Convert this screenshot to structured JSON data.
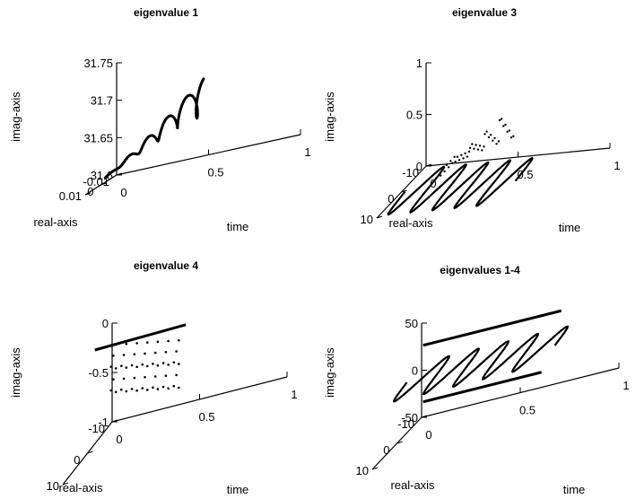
{
  "chart_data": [
    {
      "type": "line",
      "title": "eigenvalue 1",
      "xlabel": "time",
      "ylabel": "real-axis",
      "zlabel": "imag-axis",
      "xticks": [
        "0",
        "0.5",
        "1"
      ],
      "yticks": [
        "0.01",
        "0",
        "-0.01"
      ],
      "zticks": [
        "31.75",
        "31.7",
        "31.65",
        "31.6"
      ],
      "xlim": [
        0,
        1
      ],
      "ylim": [
        -0.01,
        0.01
      ],
      "zlim": [
        31.6,
        31.75
      ],
      "description_series": "helix around real=0, imag rising from 31.6 to 31.72 over time 0-1"
    },
    {
      "type": "scatter",
      "title": "eigenvalue 3",
      "xlabel": "time",
      "ylabel": "real-axis",
      "zlabel": "imag-axis",
      "xticks": [
        "0",
        "0.5",
        "1"
      ],
      "yticks": [
        "10",
        "0",
        "-10"
      ],
      "zticks": [
        "1",
        "0.5",
        "0"
      ],
      "xlim": [
        0,
        1
      ],
      "ylim": [
        -10,
        10
      ],
      "zlim": [
        0,
        1
      ]
    },
    {
      "type": "scatter",
      "title": "eigenvalue 4",
      "xlabel": "time",
      "ylabel": "real-axis",
      "zlabel": "imag-axis",
      "xticks": [
        "0",
        "0.5",
        "1"
      ],
      "yticks": [
        "10",
        "0",
        "-10"
      ],
      "zticks": [
        "0",
        "-0.5",
        "-1"
      ],
      "xlim": [
        0,
        1
      ],
      "ylim": [
        -10,
        10
      ],
      "zlim": [
        -1,
        0
      ]
    },
    {
      "type": "line",
      "title": "eigenvalues 1-4",
      "xlabel": "time",
      "ylabel": "real-axis",
      "zlabel": "imag-axis",
      "xticks": [
        "0",
        "0.5",
        "1"
      ],
      "yticks": [
        "10",
        "0",
        "-10"
      ],
      "zticks": [
        "50",
        "0",
        "-50"
      ],
      "xlim": [
        0,
        1
      ],
      "ylim": [
        -10,
        10
      ],
      "zlim": [
        -50,
        50
      ]
    }
  ]
}
